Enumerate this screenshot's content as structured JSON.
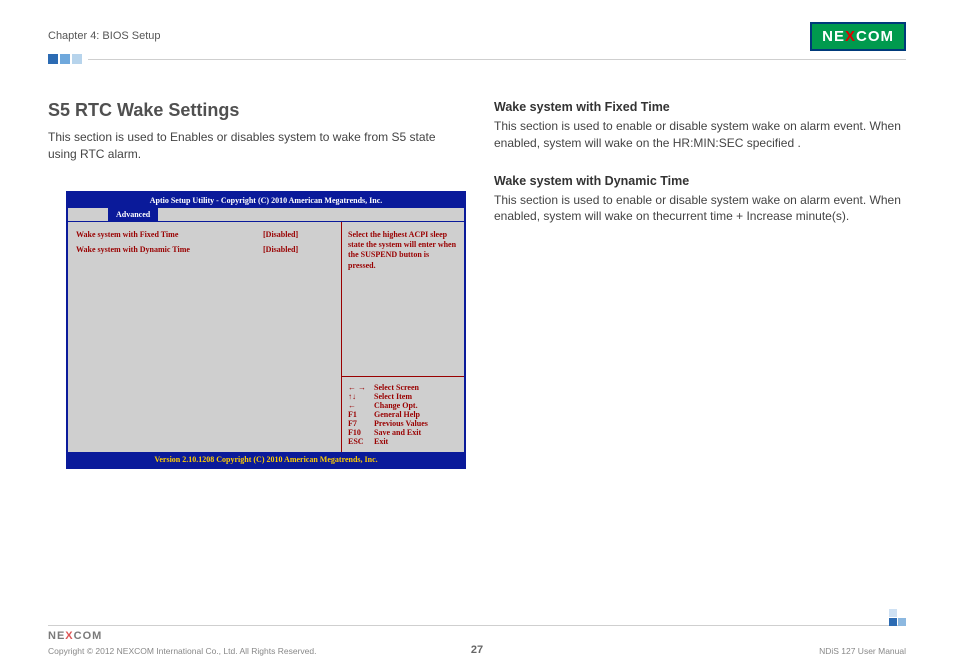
{
  "header": {
    "chapter": "Chapter 4: BIOS Setup",
    "logo_pre": "NE",
    "logo_x": "X",
    "logo_post": "COM"
  },
  "left": {
    "title": "S5 RTC Wake Settings",
    "para": "This section is used to Enables or disables system to wake from S5 state using RTC alarm."
  },
  "right": {
    "g1_title": "Wake system with Fixed Time",
    "g1_p1": "This section is used to enable or disable system wake on alarm event.",
    "g1_p2": "When enabled, system will wake on the HR:MIN:SEC specified .",
    "g2_title": "Wake system with Dynamic Time",
    "g2_p1": "This section is used to enable or disable system wake on alarm event.",
    "g2_p2": "When enabled, system will wake on thecurrent time + Increase minute(s)."
  },
  "bios": {
    "top": "Aptio  Setup  Utility - Copyright (C) 2010 American Megatrends, Inc.",
    "tab": "Advanced",
    "rows": [
      {
        "label": "Wake system with Fixed Time",
        "val": "[Disabled]"
      },
      {
        "label": "Wake system with Dynamic Time",
        "val": "[Disabled]"
      }
    ],
    "desc": "Select the highest ACPI sleep state the system will enter when the SUSPEND button is pressed.",
    "keys": [
      {
        "k": "← →",
        "d": "Select Screen"
      },
      {
        "k": "↑↓",
        "d": "Select Item"
      },
      {
        "k": "←",
        "d": "Change Opt."
      },
      {
        "k": "F1",
        "d": "General Help"
      },
      {
        "k": "F7",
        "d": "Previous Values"
      },
      {
        "k": "F10",
        "d": "Save and Exit"
      },
      {
        "k": "ESC",
        "d": "Exit"
      }
    ],
    "bottom": "Version 2.10.1208 Copyright (C) 2010 American Megatrends, Inc."
  },
  "footer": {
    "logo_pre": "NE",
    "logo_x": "X",
    "logo_post": "COM",
    "copyright": "Copyright © 2012 NEXCOM International Co., Ltd. All Rights Reserved.",
    "page": "27",
    "manual": "NDiS 127 User Manual"
  }
}
